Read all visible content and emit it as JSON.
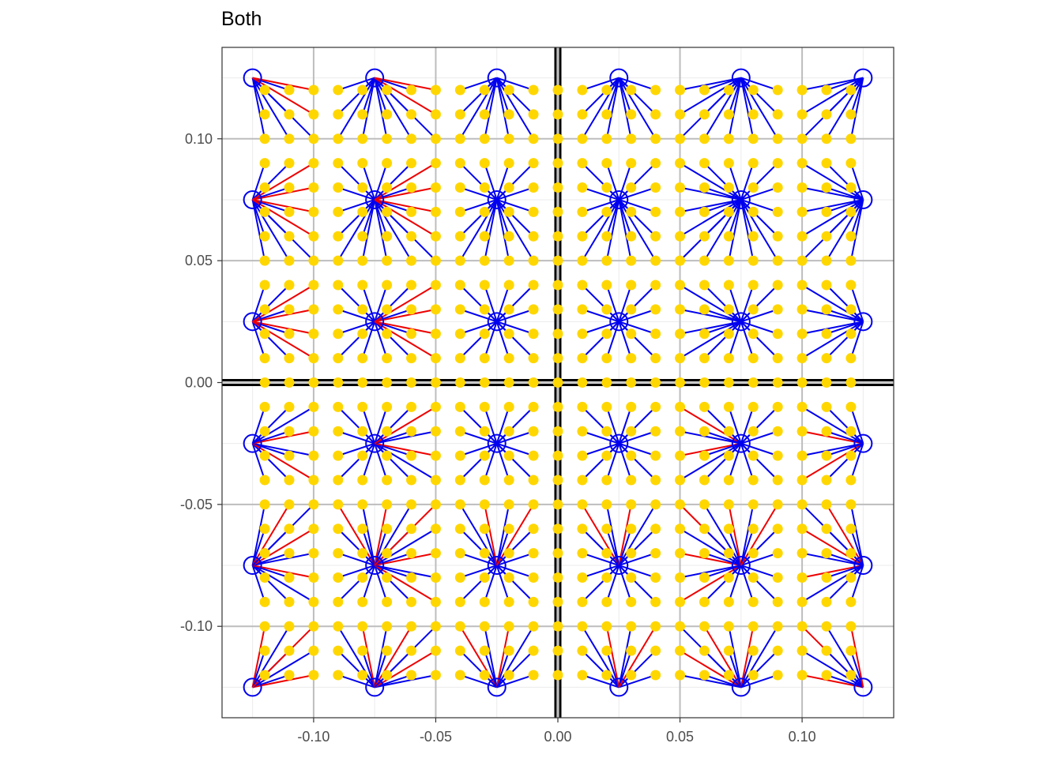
{
  "chart_data": {
    "type": "scatter",
    "title": "Both",
    "xlabel": "",
    "ylabel": "",
    "xlim": [
      -0.1375,
      0.1375
    ],
    "ylim": [
      -0.1375,
      0.1375
    ],
    "x_ticks": [
      "-0.10",
      "-0.05",
      "0.00",
      "0.05",
      "0.10"
    ],
    "y_ticks": [
      "-0.10",
      "-0.05",
      "0.00",
      "0.05",
      "0.10"
    ],
    "x_tick_values": [
      -0.1,
      -0.05,
      0.0,
      0.05,
      0.1
    ],
    "y_tick_values": [
      -0.1,
      -0.05,
      0.0,
      0.05,
      0.1
    ],
    "grid": true,
    "reference_lines": [
      {
        "orientation": "vertical",
        "value": 0.0
      },
      {
        "orientation": "horizontal",
        "value": 0.0
      }
    ],
    "points": {
      "grid_values": [
        -0.12,
        -0.11,
        -0.1,
        -0.09,
        -0.08,
        -0.07,
        -0.06,
        -0.05,
        -0.04,
        -0.03,
        -0.02,
        -0.01,
        0.0,
        0.01,
        0.02,
        0.03,
        0.04,
        0.05,
        0.06,
        0.07,
        0.08,
        0.09,
        0.1,
        0.11,
        0.12
      ]
    },
    "centers": {
      "x": [
        -0.125,
        -0.075,
        -0.025,
        0.025,
        0.075,
        0.125
      ],
      "y": [
        -0.125,
        -0.075,
        -0.025,
        0.025,
        0.075,
        0.125
      ]
    },
    "colors": {
      "points": "#FFD700",
      "centers": "#0000EE",
      "links_primary": "#0000EE",
      "links_secondary": "#EE0000",
      "grid_major": "#bdbdbd",
      "grid_minor": "#ebebeb",
      "reference": "#000000"
    }
  }
}
